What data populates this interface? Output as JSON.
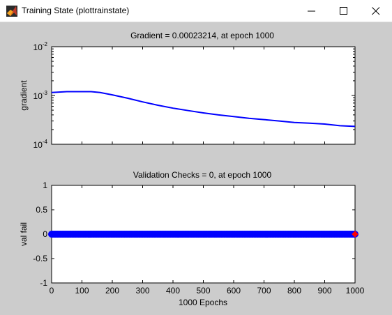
{
  "window": {
    "title": "Training State (plottrainstate)",
    "icon": "matlab-icon",
    "controls": {
      "minimize": "minimize-icon",
      "maximize": "maximize-icon",
      "close": "close-icon"
    }
  },
  "chart_data": [
    {
      "type": "line",
      "title": "Gradient = 0.00023214, at epoch 1000",
      "xlabel": "",
      "ylabel": "gradient",
      "yscale": "log",
      "ylim": [
        0.0001,
        0.01
      ],
      "xlim": [
        0,
        1000
      ],
      "ytick_labels": [
        {
          "base": "10",
          "exp": "-2"
        },
        {
          "base": "10",
          "exp": "-3"
        },
        {
          "base": "10",
          "exp": "-4"
        }
      ],
      "series": [
        {
          "color": "#0000ff",
          "x": [
            0,
            50,
            100,
            130,
            160,
            200,
            250,
            300,
            350,
            400,
            450,
            500,
            550,
            600,
            650,
            700,
            750,
            800,
            850,
            900,
            950,
            1000
          ],
          "y": [
            0.00115,
            0.0012,
            0.0012,
            0.0012,
            0.00115,
            0.00103,
            0.00088,
            0.00074,
            0.00063,
            0.00055,
            0.00049,
            0.00044,
            0.0004,
            0.00037,
            0.00034,
            0.00032,
            0.0003,
            0.00028,
            0.00027,
            0.00026,
            0.00024,
            0.00023214
          ]
        }
      ]
    },
    {
      "type": "scatter",
      "title": "Validation Checks = 0, at epoch 1000",
      "xlabel": "1000 Epochs",
      "ylabel": "val fail",
      "xlim": [
        0,
        1000
      ],
      "ylim": [
        -1,
        1
      ],
      "xtick_labels": [
        "0",
        "100",
        "200",
        "300",
        "400",
        "500",
        "600",
        "700",
        "800",
        "900",
        "1000"
      ],
      "ytick_labels": [
        "1",
        "0.5",
        "0",
        "-0.5",
        "-1"
      ],
      "series": [
        {
          "color": "#0000ff",
          "marker": "circle",
          "x_range": [
            0,
            1000
          ],
          "y": 0
        }
      ],
      "highlight_point": {
        "x": 1000,
        "y": 0,
        "color": "#ff0000",
        "marker": "diamond"
      }
    }
  ]
}
